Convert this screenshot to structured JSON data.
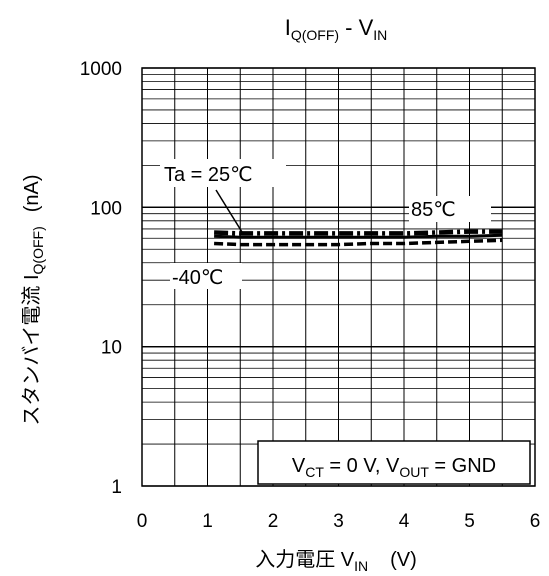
{
  "chart_data": {
    "type": "line",
    "title": {
      "main": "I",
      "main_sub": "Q(OFF)",
      "sep": " - V",
      "sep_sub": "IN"
    },
    "xlabel": {
      "text": "入力電圧 V",
      "sub": "IN",
      "unit": "(V)"
    },
    "ylabel": {
      "text": "スタンバイ電流 I",
      "sub": "Q(OFF)",
      "unit": "(nA)"
    },
    "xlim": [
      0,
      6
    ],
    "ylim": [
      1,
      1000
    ],
    "yscale": "log",
    "grid": true,
    "x_ticks": [
      "0",
      "1",
      "2",
      "3",
      "4",
      "5",
      "6"
    ],
    "y_ticks": [
      "1",
      "10",
      "100",
      "1000"
    ],
    "series": [
      {
        "name": "Ta = 25℃",
        "style": "solid",
        "color": "#000000",
        "x": [
          1.1,
          1.5,
          2.0,
          2.5,
          3.0,
          3.5,
          4.0,
          4.5,
          5.0,
          5.5
        ],
        "y": [
          62,
          61,
          61,
          61,
          61,
          61,
          61,
          62,
          62,
          63
        ]
      },
      {
        "name": "85℃",
        "style": "dashdot",
        "color": "#000000",
        "x": [
          1.1,
          1.5,
          2.0,
          2.5,
          3.0,
          3.5,
          4.0,
          4.5,
          5.0,
          5.5
        ],
        "y": [
          66,
          65,
          65,
          65,
          65,
          65,
          65,
          66,
          67,
          67
        ]
      },
      {
        "name": "-40℃",
        "style": "dashed",
        "color": "#000000",
        "x": [
          1.1,
          1.5,
          2.0,
          2.5,
          3.0,
          3.5,
          4.0,
          4.5,
          5.0,
          5.5
        ],
        "y": [
          55,
          54,
          54,
          54,
          54,
          55,
          55,
          56,
          57,
          58
        ]
      }
    ],
    "annotations": [
      {
        "label": "Ta = 25℃"
      },
      {
        "label": "85℃"
      },
      {
        "label": "-40℃"
      }
    ],
    "condition": {
      "v1": "V",
      "v1_sub": "CT",
      "eq1": " = 0 V, V",
      "v2_sub": "OUT",
      "eq2": " = GND"
    }
  }
}
